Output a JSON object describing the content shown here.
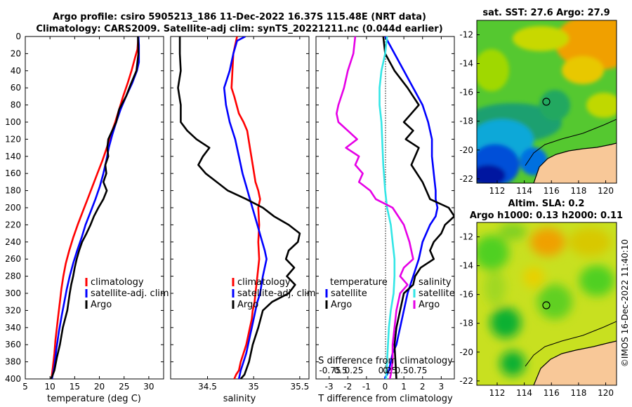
{
  "title": {
    "line1": "Argo profile: csiro 5905213_186 11-Dec-2022 16.37S 115.48E (NRT data)",
    "line2": "Climatology: CARS2009. Satellite-adj clim: synTS_20221211.nc (0.044d earlier)"
  },
  "colors": {
    "climatology": "#ff0000",
    "satellite": "#0000ff",
    "argo": "#000000",
    "sat_salinity": "#33e6e6",
    "clim_salinity": "#e600e6"
  },
  "chart_data": [
    {
      "type": "line",
      "panel": "temperature",
      "xlabel": "temperature (deg C)",
      "ylabel": "",
      "xlim": [
        5,
        33
      ],
      "ylim": [
        0,
        400
      ],
      "y_inverted": true,
      "xticks": [
        "5",
        "10",
        "15",
        "20",
        "25",
        "30"
      ],
      "yticks": [
        "0",
        "20",
        "40",
        "60",
        "80",
        "100",
        "120",
        "140",
        "160",
        "180",
        "200",
        "220",
        "240",
        "260",
        "280",
        "300",
        "320",
        "340",
        "360",
        "380",
        "400"
      ],
      "legend": [
        "climatology",
        "satellite-adj. clim",
        "Argo"
      ],
      "series": [
        {
          "name": "climatology",
          "color": "#ff0000",
          "x": [
            27.9,
            27.7,
            27.2,
            26.5,
            25.7,
            24.8,
            24.0,
            23.2,
            22.3,
            21.5,
            20.6,
            19.6,
            18.6,
            17.6,
            16.6,
            15.6,
            14.7,
            13.9,
            13.2,
            12.7,
            12.3,
            12.0,
            11.7,
            11.4,
            11.1,
            10.9,
            10.7,
            10.5,
            10.3
          ],
          "depth": [
            0,
            15,
            25,
            40,
            55,
            70,
            85,
            100,
            115,
            130,
            145,
            160,
            175,
            190,
            205,
            220,
            235,
            250,
            265,
            280,
            295,
            310,
            325,
            340,
            355,
            370,
            380,
            390,
            400
          ]
        },
        {
          "name": "satellite-adj. clim",
          "color": "#0000ff",
          "x": [
            27.9,
            28.0,
            28.0,
            27.6,
            26.6,
            25.4,
            24.3,
            23.4,
            22.6,
            21.9,
            21.4,
            20.8,
            20.1,
            19.2,
            18.2,
            17.2,
            16.4,
            15.5,
            14.7,
            14.0,
            13.4,
            12.9,
            12.4,
            11.8,
            11.3,
            10.9,
            10.4
          ],
          "depth": [
            0,
            10,
            30,
            40,
            55,
            70,
            85,
            100,
            115,
            130,
            145,
            160,
            175,
            190,
            205,
            220,
            235,
            250,
            265,
            280,
            295,
            310,
            325,
            345,
            365,
            385,
            400
          ]
        },
        {
          "name": "Argo",
          "color": "#000000",
          "x": [
            27.8,
            27.9,
            27.5,
            26.4,
            25.4,
            24.0,
            23.4,
            22.6,
            21.8,
            21.6,
            21.8,
            21.2,
            21.4,
            20.8,
            21.5,
            20.8,
            19.8,
            18.9,
            18.2,
            17.4,
            16.5,
            15.9,
            15.4,
            15.0,
            14.7,
            14.3,
            14.0,
            13.5,
            12.6,
            12.0,
            11.4,
            10.9,
            10.5,
            10.2
          ],
          "depth": [
            0,
            20,
            40,
            55,
            70,
            85,
            100,
            110,
            120,
            130,
            140,
            150,
            160,
            170,
            180,
            190,
            200,
            210,
            220,
            230,
            240,
            250,
            260,
            270,
            280,
            290,
            300,
            320,
            340,
            360,
            375,
            390,
            396,
            400
          ]
        }
      ]
    },
    {
      "type": "line",
      "panel": "salinity",
      "xlabel": "salinity",
      "xlim": [
        34.1,
        35.6
      ],
      "ylim": [
        0,
        400
      ],
      "y_inverted": true,
      "xticks": [
        "34.5",
        "35",
        "35.5"
      ],
      "legend": [
        "climatology",
        "satellite-adj. clim",
        "Argo"
      ],
      "series": [
        {
          "name": "climatology",
          "color": "#ff0000",
          "x": [
            34.82,
            34.78,
            34.77,
            34.76,
            34.79,
            34.84,
            34.89,
            34.93,
            34.96,
            34.99,
            35.02,
            35.05,
            35.07,
            35.05,
            35.06,
            35.05,
            35.06,
            35.04,
            35.02,
            35.01,
            34.99,
            34.98,
            34.96,
            34.94,
            34.92,
            34.89,
            34.86,
            34.84,
            34.81,
            34.79
          ],
          "depth": [
            0,
            20,
            40,
            60,
            70,
            90,
            100,
            110,
            130,
            150,
            170,
            180,
            190,
            200,
            220,
            240,
            260,
            280,
            300,
            310,
            320,
            330,
            340,
            350,
            360,
            370,
            380,
            390,
            395,
            400
          ]
        },
        {
          "name": "satellite-adj. clim",
          "color": "#0000ff",
          "x": [
            34.91,
            34.82,
            34.78,
            34.74,
            34.68,
            34.7,
            34.74,
            34.8,
            34.84,
            34.88,
            34.92,
            34.96,
            35.0,
            35.04,
            35.08,
            35.12,
            35.14,
            35.1,
            35.07,
            35.04,
            35.02,
            35.0,
            34.98,
            34.96,
            34.94,
            34.92,
            34.89,
            34.86,
            34.84
          ],
          "depth": [
            0,
            5,
            20,
            40,
            60,
            80,
            100,
            120,
            140,
            160,
            175,
            190,
            205,
            220,
            235,
            250,
            260,
            280,
            300,
            310,
            320,
            330,
            340,
            350,
            360,
            370,
            380,
            390,
            400
          ]
        },
        {
          "name": "Argo",
          "color": "#000000",
          "x": [
            34.2,
            34.2,
            34.21,
            34.18,
            34.21,
            34.21,
            34.28,
            34.38,
            34.52,
            34.45,
            34.4,
            34.48,
            34.6,
            34.72,
            34.92,
            35.1,
            35.22,
            35.38,
            35.5,
            35.48,
            35.38,
            35.35,
            35.44,
            35.36,
            35.45,
            35.38,
            35.2,
            35.1,
            35.05,
            34.99,
            34.95,
            34.9,
            34.86
          ],
          "depth": [
            0,
            20,
            40,
            60,
            80,
            100,
            110,
            120,
            130,
            140,
            150,
            160,
            170,
            180,
            190,
            200,
            210,
            220,
            230,
            240,
            250,
            260,
            270,
            280,
            290,
            300,
            310,
            320,
            340,
            360,
            380,
            395,
            400
          ]
        }
      ]
    },
    {
      "type": "line",
      "panel": "difference from climatology",
      "xlabel": "T difference from climatology",
      "xlim": [
        -3.7,
        3.7
      ],
      "ylim": [
        0,
        400
      ],
      "y_inverted": true,
      "xticks": [
        "-3",
        "-2",
        "-1",
        "0",
        "1",
        "2",
        "3"
      ],
      "top_axis_label": "S difference from climatology",
      "top_xticks": [
        "-0.75",
        "0.5",
        "0.25",
        "0",
        "0.25",
        "0.5",
        "0.75"
      ],
      "legend_left": {
        "header": "temperature",
        "items": [
          "satellite",
          "Argo"
        ]
      },
      "legend_right": {
        "header": "salinity",
        "items": [
          "satellite",
          "Argo"
        ]
      },
      "series": [
        {
          "name": "temperature satellite",
          "color": "#0000ff",
          "x": [
            0.0,
            0.5,
            1.0,
            1.5,
            2.0,
            2.3,
            2.5,
            2.5,
            2.6,
            2.7,
            2.7,
            2.8,
            2.7,
            2.4,
            2.0,
            1.8,
            1.5,
            1.2,
            1.0,
            0.8,
            0.7,
            0.6,
            0.4,
            0.3,
            0.2,
            0.1,
            0.0,
            0.0
          ],
          "depth": [
            0,
            20,
            40,
            60,
            80,
            100,
            120,
            140,
            160,
            180,
            190,
            200,
            210,
            220,
            240,
            260,
            280,
            300,
            320,
            340,
            350,
            360,
            370,
            380,
            390,
            395,
            398,
            400
          ]
        },
        {
          "name": "temperature Argo",
          "color": "#000000",
          "x": [
            -0.1,
            0.0,
            0.5,
            1.2,
            1.8,
            1.4,
            1.0,
            1.5,
            1.1,
            1.8,
            1.4,
            2.0,
            2.2,
            2.4,
            3.4,
            3.7,
            3.2,
            3.0,
            2.6,
            2.4,
            2.6,
            1.9,
            1.6,
            1.5,
            1.0,
            0.8,
            0.6,
            0.5,
            0.6
          ],
          "depth": [
            0,
            20,
            40,
            60,
            80,
            90,
            100,
            110,
            120,
            130,
            150,
            170,
            180,
            190,
            200,
            210,
            220,
            230,
            240,
            250,
            260,
            270,
            280,
            290,
            300,
            320,
            340,
            360,
            400
          ]
        },
        {
          "name": "salinity satellite",
          "color": "#33e6e6",
          "x": [
            0.1,
            0.0,
            -0.2,
            -0.3,
            -0.3,
            -0.2,
            -0.1,
            0.0,
            0.1,
            0.3,
            0.4,
            0.5,
            0.5,
            0.45,
            0.3,
            0.2,
            0.15,
            0.1,
            0.05
          ],
          "depth": [
            0,
            20,
            40,
            60,
            80,
            100,
            150,
            180,
            200,
            220,
            240,
            260,
            280,
            300,
            320,
            340,
            360,
            380,
            400
          ]
        },
        {
          "name": "salinity Argo",
          "color": "#e600e6",
          "x": [
            -1.6,
            -1.7,
            -2.0,
            -2.2,
            -2.5,
            -2.6,
            -2.5,
            -2.0,
            -1.5,
            -2.1,
            -1.4,
            -1.6,
            -1.2,
            -1.4,
            -0.8,
            -0.5,
            0.4,
            1.0,
            1.3,
            1.5,
            1.0,
            0.8,
            1.2,
            0.8,
            0.6,
            0.5,
            0.4,
            0.4,
            0.3,
            0.25
          ],
          "depth": [
            0,
            20,
            40,
            60,
            80,
            90,
            100,
            110,
            120,
            130,
            140,
            150,
            160,
            170,
            180,
            190,
            200,
            220,
            240,
            260,
            270,
            280,
            290,
            300,
            320,
            340,
            360,
            380,
            395,
            400
          ]
        }
      ]
    }
  ],
  "sst_map": {
    "title": "sat. SST: 27.6 Argo: 27.9",
    "yticks": [
      "-12",
      "-14",
      "-16",
      "-18",
      "-20",
      "-22"
    ],
    "xticks": [
      "112",
      "114",
      "116",
      "118",
      "120"
    ]
  },
  "sla_map": {
    "title1": "Altim. SLA: 0.2",
    "title2": "Argo h1000: 0.13 h2000: 0.11",
    "yticks": [
      "-12",
      "-14",
      "-16",
      "-18",
      "-20",
      "-22"
    ],
    "xticks": [
      "112",
      "114",
      "116",
      "118",
      "120"
    ]
  },
  "stamp": "©IMOS 16-Dec-2022 11:40:10"
}
